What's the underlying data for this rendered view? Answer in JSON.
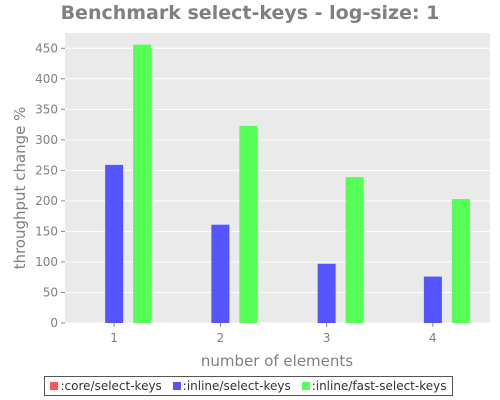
{
  "chart_data": {
    "type": "bar",
    "title": "Benchmark select-keys - log-size: 1",
    "xlabel": "number of elements",
    "ylabel": "throughput change %",
    "categories": [
      "1",
      "2",
      "3",
      "4"
    ],
    "ylim": [
      0,
      475
    ],
    "yticks": [
      0,
      50,
      100,
      150,
      200,
      250,
      300,
      350,
      400,
      450
    ],
    "grid": true,
    "legend_position": "bottom",
    "series": [
      {
        "name": ":core/select-keys",
        "color": "#ff5555",
        "values": [
          0,
          0,
          0,
          0
        ]
      },
      {
        "name": ":inline/select-keys",
        "color": "#5555ff",
        "values": [
          259,
          161,
          97,
          76
        ]
      },
      {
        "name": ":inline/fast-select-keys",
        "color": "#55ff55",
        "values": [
          456,
          323,
          239,
          203
        ]
      }
    ]
  }
}
